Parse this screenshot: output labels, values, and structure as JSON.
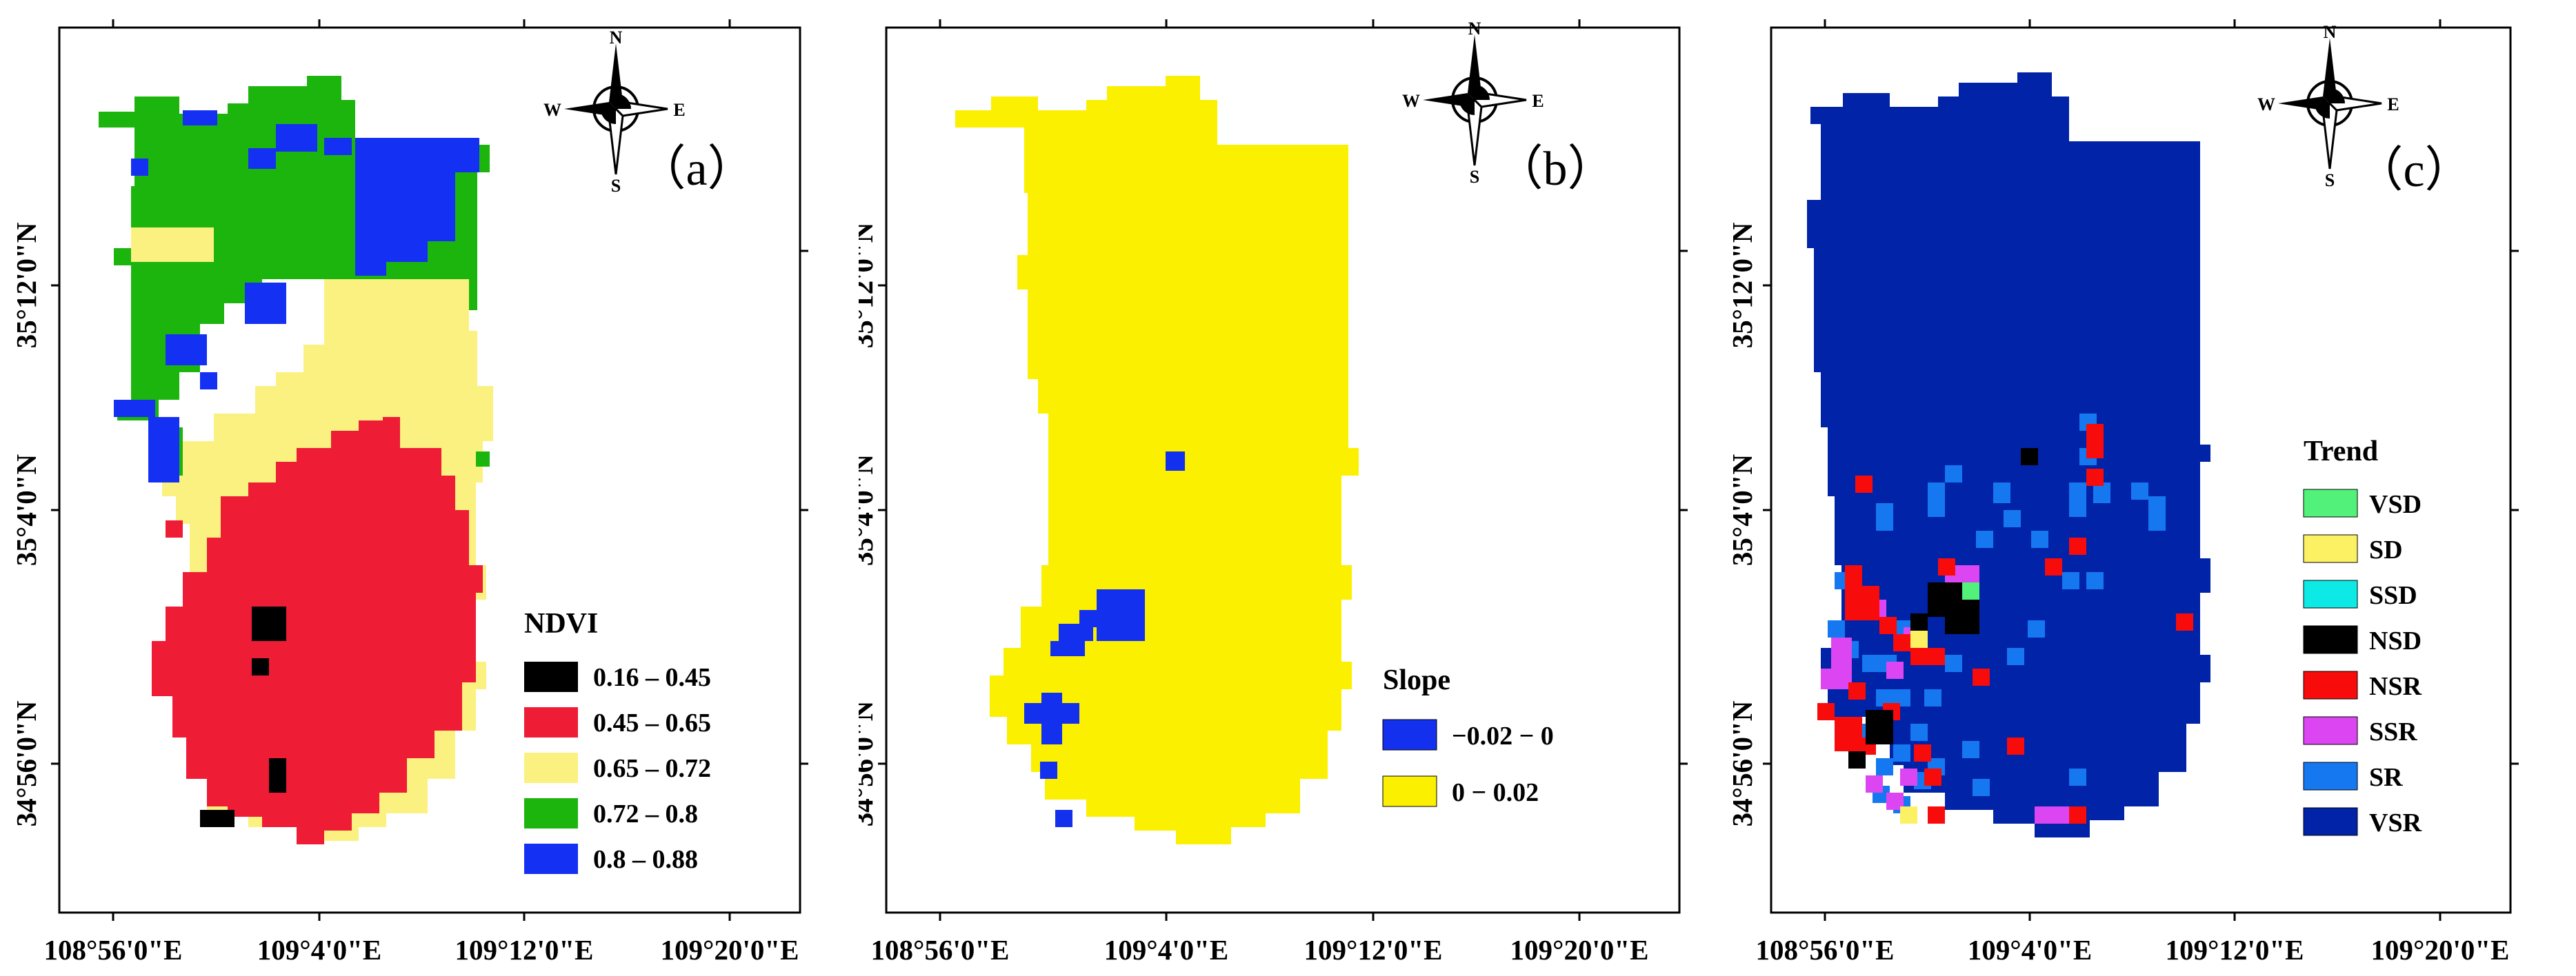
{
  "panels": [
    {
      "id": "a",
      "panel_label": "（a）",
      "legend_title": "NDVI",
      "legend": [
        {
          "label": "0.16 – 0.45",
          "color": "#000000"
        },
        {
          "label": "0.45 – 0.65",
          "color": "#ee1c35"
        },
        {
          "label": "0.65 – 0.72",
          "color": "#fbf181"
        },
        {
          "label": "0.72 – 0.8",
          "color": "#1bb50e"
        },
        {
          "label": "0.8 – 0.88",
          "color": "#1430f2"
        }
      ]
    },
    {
      "id": "b",
      "panel_label": "（b）",
      "legend_title": "Slope",
      "legend": [
        {
          "label": "−0.02 − 0",
          "color": "#1330ee"
        },
        {
          "label": "0 − 0.02",
          "color": "#fbf000"
        }
      ]
    },
    {
      "id": "c",
      "panel_label": "（c）",
      "legend_title": "Trend",
      "legend": [
        {
          "label": "VSD",
          "color": "#52f27a"
        },
        {
          "label": "SD",
          "color": "#fbf162"
        },
        {
          "label": "SSD",
          "color": "#0de9e4"
        },
        {
          "label": "NSD",
          "color": "#000000"
        },
        {
          "label": "NSR",
          "color": "#f80b0b"
        },
        {
          "label": "SSR",
          "color": "#dc46f2"
        },
        {
          "label": "SR",
          "color": "#1578f0"
        },
        {
          "label": "VSR",
          "color": "#0123a8"
        }
      ]
    }
  ],
  "axes": {
    "x_ticks": [
      "108°56'0\"E",
      "109°4'0\"E",
      "109°12'0\"E",
      "109°20'0\"E"
    ],
    "y_ticks": [
      "35°12'0\"N",
      "35°4'0\"N",
      "34°56'0\"N"
    ]
  },
  "north_arrow": {
    "n": "N",
    "s": "S",
    "e": "E",
    "w": "W"
  },
  "colors": {
    "a_red": "#ee1c35",
    "a_yellow": "#fbf181",
    "a_green": "#1bb50e",
    "a_blue": "#1430f2",
    "b_yellow": "#fbf000",
    "b_blue": "#1330ee",
    "c_navy": "#0123a8"
  }
}
